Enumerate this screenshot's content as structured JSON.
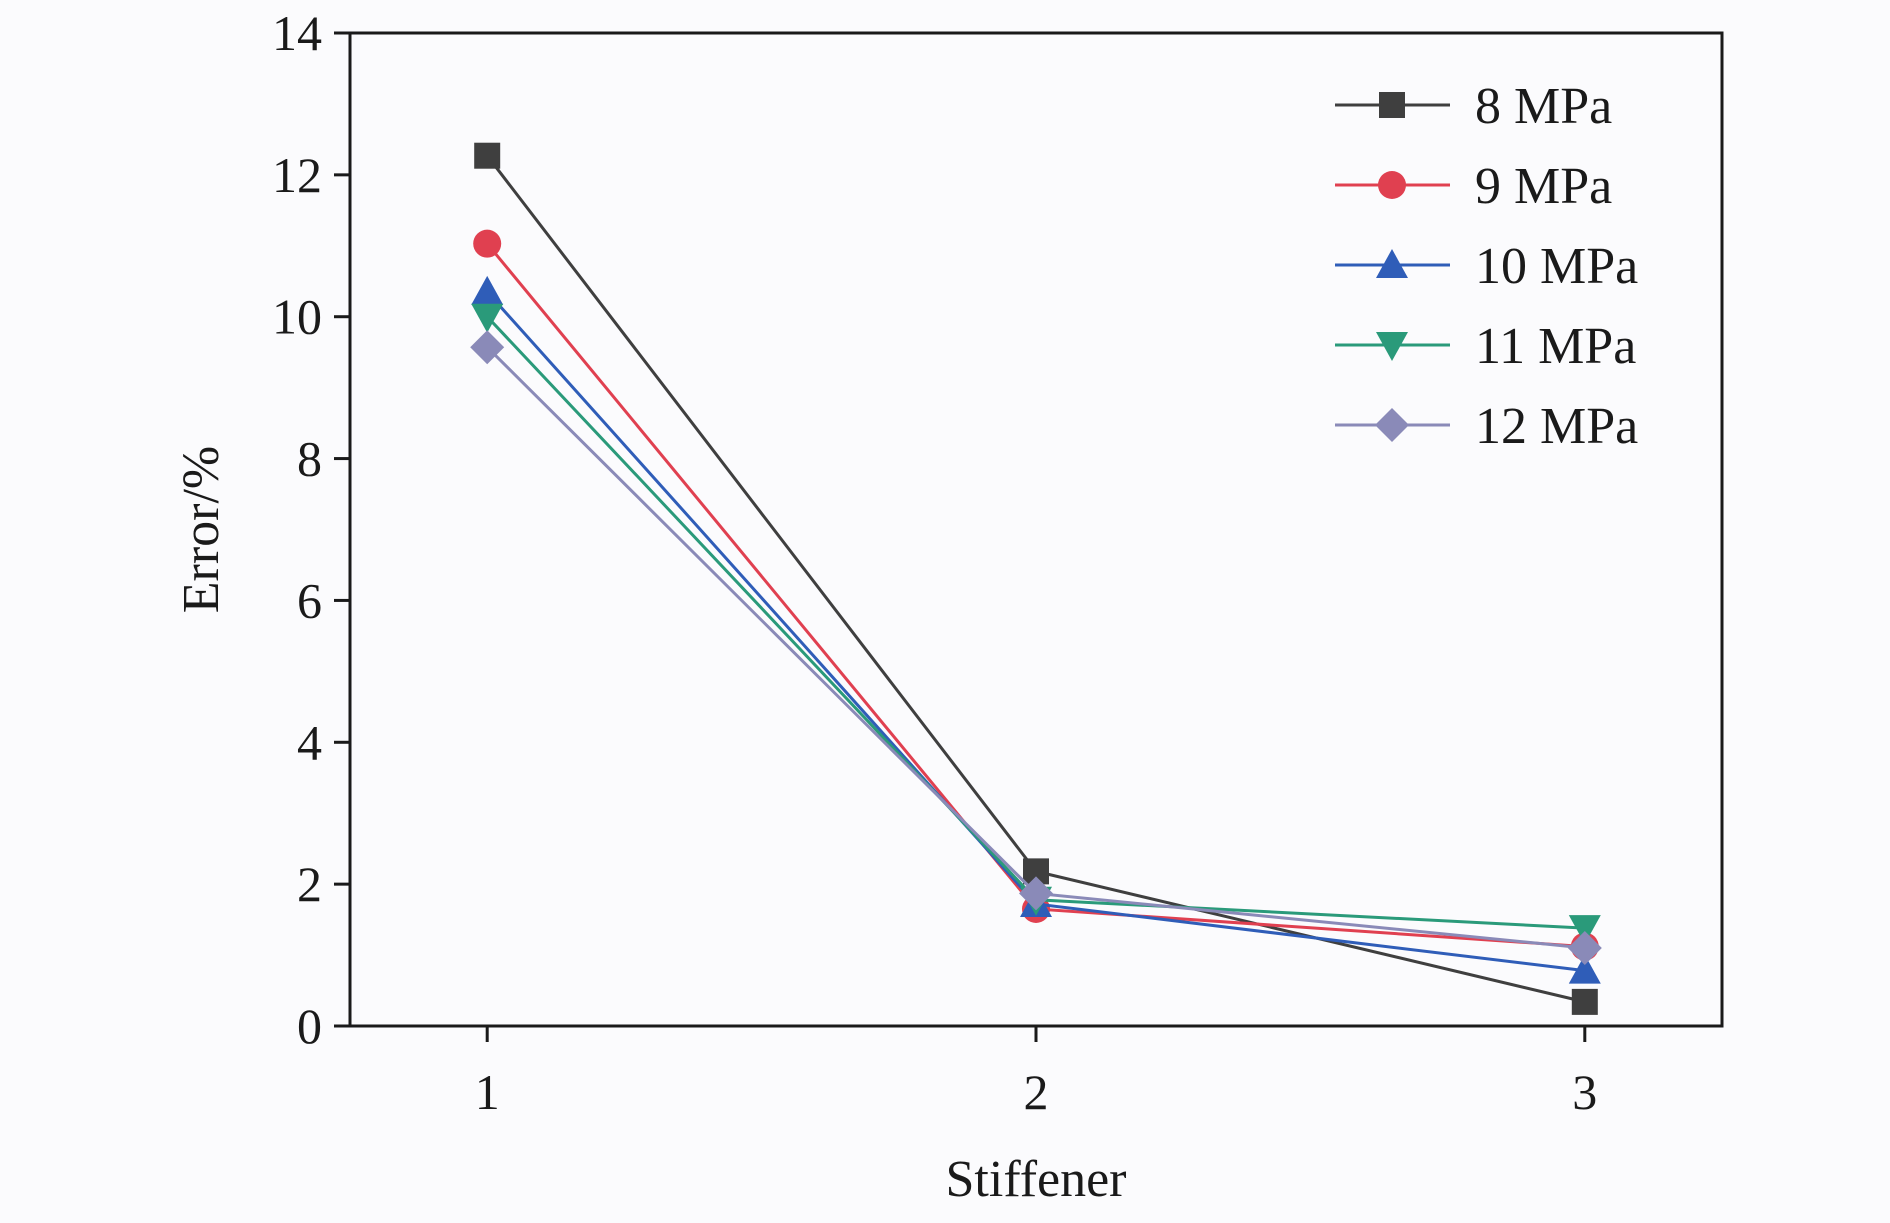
{
  "chart_data": {
    "type": "line",
    "title": "",
    "xlabel": "Stiffener",
    "ylabel": "Error/%",
    "x": [
      1,
      2,
      3
    ],
    "x_tick_labels": [
      "1",
      "2",
      "3"
    ],
    "xlim": [
      0.75,
      3.25
    ],
    "ylim": [
      0,
      14
    ],
    "y_ticks": [
      0,
      2,
      4,
      6,
      8,
      10,
      12,
      14
    ],
    "y_tick_labels": [
      "0",
      "2",
      "4",
      "6",
      "8",
      "10",
      "12",
      "14"
    ],
    "grid": false,
    "legend_position": "top-right",
    "series": [
      {
        "name": "8 MPa",
        "values": [
          12.27,
          2.18,
          0.34
        ],
        "color": "#3f3f3f",
        "marker": "square"
      },
      {
        "name": "9 MPa",
        "values": [
          11.03,
          1.65,
          1.12
        ],
        "color": "#e04050",
        "marker": "circle"
      },
      {
        "name": "10 MPa",
        "values": [
          10.35,
          1.72,
          0.78
        ],
        "color": "#2f5db8",
        "marker": "triangle-up"
      },
      {
        "name": "11 MPa",
        "values": [
          10.0,
          1.78,
          1.38
        ],
        "color": "#2a9a7a",
        "marker": "triangle-down"
      },
      {
        "name": "12 MPa",
        "values": [
          9.57,
          1.87,
          1.1
        ],
        "color": "#8a8ab8",
        "marker": "diamond"
      }
    ]
  }
}
